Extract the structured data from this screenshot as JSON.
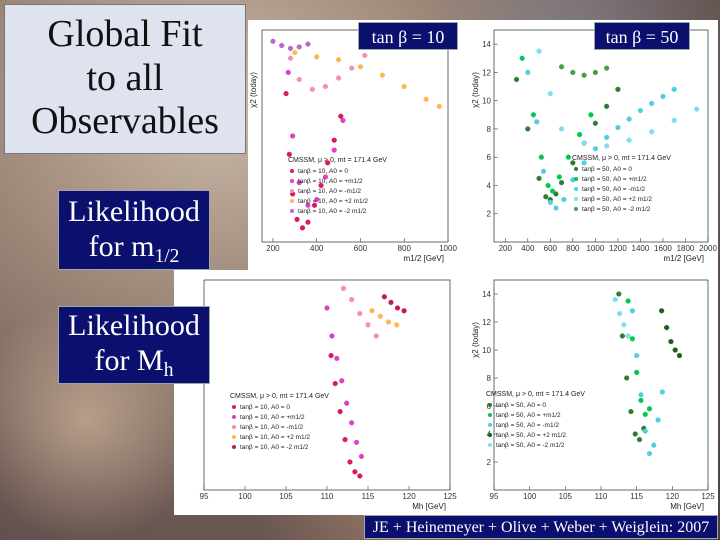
{
  "slide": {
    "title_line1": "Global Fit",
    "title_line2": "to all",
    "title_line3": "Observables",
    "likelihood_m12_line1": "Likelihood",
    "likelihood_m12_line2": "for m",
    "likelihood_m12_sub": "1/2",
    "likelihood_mh_line1": "Likelihood",
    "likelihood_mh_line2": "for M",
    "likelihood_mh_sub": "h",
    "tanb10_label": "tan β = 10",
    "tanb50_label": "tan β = 50",
    "credit": "JE + Heinemeyer + Olive + Weber + Weiglein: 2007"
  },
  "chart_data": [
    {
      "id": "m12-tb10",
      "type": "scatter",
      "xlabel": "m1/2 [GeV]",
      "ylabel": "χ2 (today)",
      "xlim": [
        150,
        1000
      ],
      "ylim": [
        0,
        15
      ],
      "xticks": [
        200,
        400,
        600,
        800,
        1000
      ],
      "yticks": [],
      "legend_title": "CMSSM, μ > 0, mt = 171.4 GeV",
      "legend": [
        "tanβ = 10, A0 = 0",
        "tanβ = 10, A0 = +m1/2",
        "tanβ = 10, A0 = -m1/2",
        "tanβ = 10, A0 = +2 m1/2",
        "tanβ = 10, A0 = -2 m1/2"
      ],
      "series": [
        {
          "color": "#d81b60",
          "x": [
            260,
            275,
            290,
            310,
            335,
            360,
            390,
            420,
            450,
            480,
            510
          ],
          "y": [
            10.5,
            6.2,
            3.4,
            1.6,
            1.0,
            1.4,
            2.6,
            4.0,
            5.6,
            7.2,
            8.9
          ]
        },
        {
          "color": "#e040c8",
          "x": [
            270,
            290,
            320,
            360,
            400,
            440,
            480,
            520
          ],
          "y": [
            12.0,
            7.5,
            4.2,
            2.6,
            3.0,
            4.6,
            6.5,
            8.6
          ]
        },
        {
          "color": "#f48fb1",
          "x": [
            280,
            320,
            380,
            440,
            500,
            560,
            620
          ],
          "y": [
            13.0,
            11.5,
            10.8,
            11.0,
            11.6,
            12.3,
            13.2
          ]
        },
        {
          "color": "#ffb74d",
          "x": [
            300,
            400,
            500,
            600,
            700,
            800,
            900,
            960
          ],
          "y": [
            13.4,
            13.1,
            12.9,
            12.4,
            11.8,
            11.0,
            10.1,
            9.6
          ]
        },
        {
          "color": "#ba68c8",
          "x": [
            200,
            240,
            280,
            320,
            360
          ],
          "y": [
            14.2,
            13.9,
            13.7,
            13.8,
            14.0
          ]
        }
      ]
    },
    {
      "id": "m12-tb50",
      "type": "scatter",
      "xlabel": "m1/2 [GeV]",
      "ylabel": "χ2 (today)",
      "xlim": [
        100,
        2000
      ],
      "ylim": [
        0,
        15
      ],
      "xticks": [
        200,
        400,
        600,
        800,
        1000,
        1200,
        1400,
        1600,
        1800,
        2000
      ],
      "yticks": [
        2,
        4,
        6,
        8,
        10,
        12,
        14
      ],
      "legend_title": "CMSSM, μ > 0, mt = 171.4 GeV",
      "legend": [
        "tanβ = 50, A0 = 0",
        "tanβ = 50, A0 = +m1/2",
        "tanβ = 50, A0 = -m1/2",
        "tanβ = 50, A0 = +2 m1/2",
        "tanβ = 50, A0 = -2 m1/2"
      ],
      "series": [
        {
          "color": "#2e7d32",
          "x": [
            300,
            400,
            500,
            560,
            600,
            650,
            700,
            800,
            900,
            1000,
            1100,
            1200
          ],
          "y": [
            11.5,
            8.0,
            4.5,
            3.2,
            3.0,
            3.4,
            4.2,
            5.6,
            7.0,
            8.4,
            9.6,
            10.8
          ]
        },
        {
          "color": "#00c853",
          "x": [
            350,
            450,
            520,
            580,
            620,
            680,
            760,
            860,
            960
          ],
          "y": [
            13.0,
            9.0,
            6.0,
            4.0,
            3.6,
            4.6,
            6.0,
            7.6,
            9.0
          ]
        },
        {
          "color": "#4dd0e1",
          "x": [
            400,
            480,
            540,
            600,
            650,
            720,
            800,
            900,
            1000,
            1100,
            1200,
            1300,
            1400,
            1500,
            1600,
            1700
          ],
          "y": [
            12.0,
            8.5,
            5.0,
            2.8,
            2.4,
            3.0,
            4.4,
            5.6,
            6.6,
            7.4,
            8.1,
            8.7,
            9.3,
            9.8,
            10.3,
            10.8
          ]
        },
        {
          "color": "#80deea",
          "x": [
            500,
            600,
            700,
            900,
            1100,
            1300,
            1500,
            1700,
            1900
          ],
          "y": [
            13.5,
            10.5,
            8.0,
            7.0,
            6.8,
            7.2,
            7.8,
            8.6,
            9.4
          ]
        },
        {
          "color": "#43a047",
          "x": [
            700,
            800,
            900,
            1000,
            1100
          ],
          "y": [
            12.4,
            12.0,
            11.8,
            12.0,
            12.3
          ]
        }
      ]
    },
    {
      "id": "mh-tb10",
      "type": "scatter",
      "xlabel": "Mh [GeV]",
      "ylabel": "χ2 (today)",
      "xlim": [
        95,
        125
      ],
      "ylim": [
        0,
        15
      ],
      "xticks": [
        95,
        100,
        105,
        110,
        115,
        120,
        125
      ],
      "yticks": [],
      "legend_title": "CMSSM, μ > 0, mt = 171.4 GeV",
      "legend": [
        "tanβ = 10, A0 = 0",
        "tanβ = 10, A0 = +m1/2",
        "tanβ = 10, A0 = -m1/2",
        "tanβ = 10, A0 = +2 m1/2",
        "tanβ = 10, A0 = -2 m1/2"
      ],
      "series": [
        {
          "color": "#d81b60",
          "x": [
            110.5,
            111,
            111.6,
            112.2,
            112.8,
            113.4,
            114
          ],
          "y": [
            9.6,
            7.6,
            5.6,
            3.6,
            2.0,
            1.3,
            1.0
          ]
        },
        {
          "color": "#e040c8",
          "x": [
            110,
            110.6,
            111.2,
            111.8,
            112.4,
            113,
            113.6,
            114.2
          ],
          "y": [
            13.0,
            11.0,
            9.4,
            7.8,
            6.2,
            4.8,
            3.4,
            2.4
          ]
        },
        {
          "color": "#f48fb1",
          "x": [
            112,
            113,
            114,
            115,
            116
          ],
          "y": [
            14.4,
            13.6,
            12.6,
            11.8,
            11.0
          ]
        },
        {
          "color": "#ffb74d",
          "x": [
            115.5,
            116.5,
            117.5,
            118.5
          ],
          "y": [
            12.8,
            12.4,
            12.0,
            11.8
          ]
        },
        {
          "color": "#c2185b",
          "x": [
            117,
            117.8,
            118.6,
            119.4
          ],
          "y": [
            13.8,
            13.4,
            13.0,
            12.8
          ]
        }
      ]
    },
    {
      "id": "mh-tb50",
      "type": "scatter",
      "xlabel": "Mh [GeV]",
      "ylabel": "χ2 (today)",
      "xlim": [
        95,
        125
      ],
      "ylim": [
        0,
        15
      ],
      "xticks": [
        95,
        100,
        105,
        110,
        115,
        120,
        125
      ],
      "yticks": [
        2,
        4,
        6,
        8,
        10,
        12,
        14
      ],
      "legend_title": "CMSSM, μ > 0, mt = 171.4 GeV",
      "legend": [
        "tanβ = 50, A0 = 0",
        "tanβ = 50, A0 = +m1/2",
        "tanβ = 50, A0 = -m1/2",
        "tanβ = 50, A0 = +2 m1/2",
        "tanβ = 50, A0 = -2 m1/2"
      ],
      "series": [
        {
          "color": "#2e7d32",
          "x": [
            112.5,
            113,
            113.6,
            114.2,
            114.8,
            115.4,
            116
          ],
          "y": [
            14.0,
            11.0,
            8.0,
            5.6,
            4.0,
            3.6,
            4.4
          ]
        },
        {
          "color": "#00c853",
          "x": [
            113.8,
            114.4,
            115,
            115.6,
            116.2,
            116.8
          ],
          "y": [
            13.5,
            10.8,
            8.4,
            6.4,
            5.4,
            5.8
          ]
        },
        {
          "color": "#4dd0e1",
          "x": [
            114.4,
            115,
            115.6,
            116.2,
            116.8,
            117.4,
            118,
            118.6
          ],
          "y": [
            12.8,
            9.6,
            6.8,
            4.2,
            2.6,
            3.2,
            5.0,
            7.0
          ]
        },
        {
          "color": "#1b5e20",
          "x": [
            118.5,
            119.2,
            119.8,
            120.4,
            121
          ],
          "y": [
            12.8,
            11.6,
            10.6,
            10.0,
            9.6
          ]
        },
        {
          "color": "#80deea",
          "x": [
            112,
            112.6,
            113.2,
            113.8
          ],
          "y": [
            13.6,
            12.6,
            11.8,
            11.0
          ]
        }
      ]
    }
  ]
}
